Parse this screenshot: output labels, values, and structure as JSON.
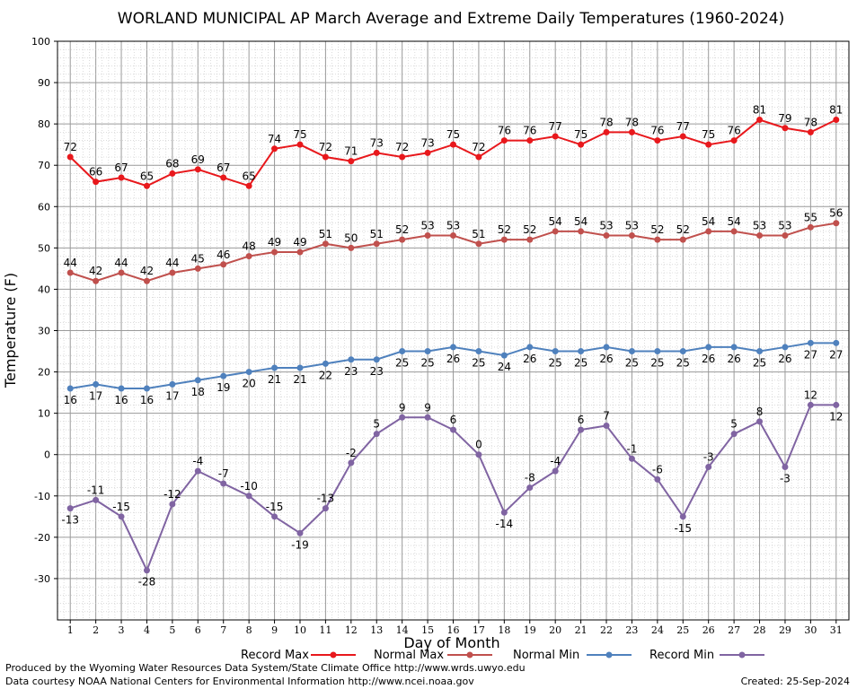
{
  "chart_data": {
    "type": "line",
    "title": "WORLAND MUNICIPAL AP March Average and Extreme Daily Temperatures (1960-2024)",
    "xlabel": "Day of Month",
    "ylabel": "Temperature (F)",
    "ylim": [
      -40,
      100
    ],
    "yticks": [
      -30,
      -20,
      -10,
      0,
      10,
      20,
      30,
      40,
      50,
      60,
      70,
      80,
      90,
      100
    ],
    "x": [
      1,
      2,
      3,
      4,
      5,
      6,
      7,
      8,
      9,
      10,
      11,
      12,
      13,
      14,
      15,
      16,
      17,
      18,
      19,
      20,
      21,
      22,
      23,
      24,
      25,
      26,
      27,
      28,
      29,
      30,
      31
    ],
    "grid": true,
    "legend_position": "bottom",
    "series": [
      {
        "name": "Record Max",
        "color": "#e8181c",
        "values": [
          72,
          66,
          67,
          65,
          68,
          69,
          67,
          65,
          74,
          75,
          72,
          71,
          73,
          72,
          73,
          75,
          72,
          76,
          76,
          77,
          75,
          78,
          78,
          76,
          77,
          75,
          76,
          81,
          79,
          78,
          81
        ]
      },
      {
        "name": "Normal Max",
        "color": "#c0504d",
        "values": [
          44,
          42,
          44,
          42,
          44,
          45,
          46,
          48,
          49,
          49,
          51,
          50,
          51,
          52,
          53,
          53,
          51,
          52,
          52,
          54,
          54,
          53,
          53,
          52,
          52,
          54,
          54,
          53,
          53,
          55,
          56
        ]
      },
      {
        "name": "Normal Min",
        "color": "#4f81bd",
        "values": [
          16,
          17,
          16,
          16,
          17,
          18,
          19,
          20,
          21,
          21,
          22,
          23,
          23,
          25,
          25,
          26,
          25,
          24,
          26,
          25,
          25,
          26,
          25,
          25,
          25,
          26,
          26,
          25,
          26,
          27,
          27
        ]
      },
      {
        "name": "Record Min",
        "color": "#8064a2",
        "values": [
          -13,
          -11,
          -15,
          -28,
          -12,
          -4,
          -7,
          -10,
          -15,
          -19,
          -13,
          -2,
          5,
          9,
          9,
          6,
          0,
          -14,
          -8,
          -4,
          6,
          7,
          -1,
          -6,
          -15,
          -3,
          5,
          8,
          -3,
          12,
          12
        ]
      }
    ]
  },
  "footer": {
    "produced_by": "Produced by the Wyoming Water Resources Data System/State Climate Office http://www.wrds.uwyo.edu",
    "courtesy": "Data courtesy NOAA National Centers for Environmental Information http://www.ncei.noaa.gov",
    "created": "Created:  25-Sep-2024"
  }
}
